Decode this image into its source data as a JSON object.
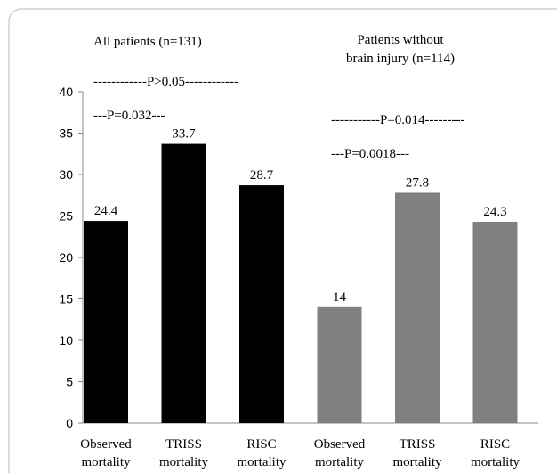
{
  "chart_data": {
    "type": "bar",
    "categories": [
      "Observed mortality",
      "TRISS mortality",
      "RISC mortality",
      "Observed mortality",
      "TRISS mortality",
      "RISC mortality"
    ],
    "values": [
      24.4,
      33.7,
      28.7,
      14,
      27.8,
      24.3
    ],
    "colors": [
      "#000000",
      "#000000",
      "#000000",
      "#808080",
      "#808080",
      "#808080"
    ],
    "ylim": [
      0,
      40
    ],
    "yticks": [
      0,
      5,
      10,
      15,
      20,
      25,
      30,
      35,
      40
    ],
    "annotations": [
      "All patients (n=131)",
      "Patients without",
      "brain injury (n=114)",
      "------------P>0.05------------",
      "---P=0.032---",
      "-----------P=0.014---------",
      "---P=0.0018---"
    ]
  }
}
